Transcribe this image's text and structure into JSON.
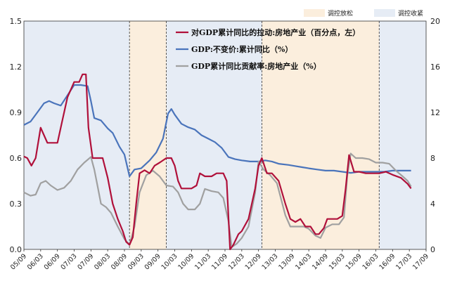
{
  "chart_data": {
    "type": "line",
    "title": "",
    "xlabel": "",
    "ylabel_left": "",
    "ylabel_right": "",
    "ylim_left": [
      0.0,
      1.5
    ],
    "ylim_right": [
      0,
      20
    ],
    "left_ticks": [
      "0.0",
      "0.3",
      "0.6",
      "0.9",
      "1.2",
      "1.5"
    ],
    "right_ticks": [
      "0",
      "4",
      "8",
      "12",
      "16",
      "20"
    ],
    "x_tick_labels": [
      "05/09",
      "06/03",
      "06/09",
      "07/03",
      "07/09",
      "08/03",
      "08/09",
      "09/03",
      "09/09",
      "10/03",
      "10/09",
      "11/03",
      "11/09",
      "12/03",
      "12/09",
      "13/03",
      "13/09",
      "14/03",
      "14/09",
      "15/03",
      "15/09",
      "16/03",
      "16/09",
      "17/03",
      "17/09"
    ],
    "period_legend": [
      {
        "label": "调控放松",
        "color": "#fbeedd"
      },
      {
        "label": "调控收紧",
        "color": "#e6ecf5"
      }
    ],
    "periods": [
      {
        "start": 0.0,
        "end": 6.3,
        "type": "tighten"
      },
      {
        "start": 6.3,
        "end": 8.5,
        "type": "loosen"
      },
      {
        "start": 8.5,
        "end": 14.2,
        "type": "tighten"
      },
      {
        "start": 14.2,
        "end": 21.2,
        "type": "loosen"
      },
      {
        "start": 21.2,
        "end": 24.0,
        "type": "tighten"
      }
    ],
    "series": [
      {
        "name": "对GDP累计同比的拉动:房地产业（百分点，左）",
        "axis": "left",
        "color": "#b0103a",
        "points": [
          [
            0,
            0.61
          ],
          [
            0.2,
            0.6
          ],
          [
            0.45,
            0.55
          ],
          [
            0.7,
            0.6
          ],
          [
            1.0,
            0.8
          ],
          [
            1.2,
            0.75
          ],
          [
            1.4,
            0.7
          ],
          [
            1.7,
            0.7
          ],
          [
            2.0,
            0.7
          ],
          [
            2.3,
            0.85
          ],
          [
            2.6,
            1.0
          ],
          [
            3.0,
            1.1
          ],
          [
            3.3,
            1.1
          ],
          [
            3.5,
            1.15
          ],
          [
            3.7,
            1.15
          ],
          [
            3.85,
            0.8
          ],
          [
            4.1,
            0.6
          ],
          [
            4.4,
            0.6
          ],
          [
            4.7,
            0.6
          ],
          [
            5.0,
            0.47
          ],
          [
            5.3,
            0.3
          ],
          [
            5.6,
            0.2
          ],
          [
            5.9,
            0.12
          ],
          [
            6.1,
            0.05
          ],
          [
            6.3,
            0.03
          ],
          [
            6.5,
            0.08
          ],
          [
            6.7,
            0.3
          ],
          [
            6.9,
            0.5
          ],
          [
            7.2,
            0.52
          ],
          [
            7.5,
            0.5
          ],
          [
            7.8,
            0.55
          ],
          [
            8.1,
            0.57
          ],
          [
            8.5,
            0.6
          ],
          [
            8.8,
            0.6
          ],
          [
            9.0,
            0.55
          ],
          [
            9.2,
            0.45
          ],
          [
            9.4,
            0.4
          ],
          [
            9.7,
            0.4
          ],
          [
            10.0,
            0.4
          ],
          [
            10.3,
            0.42
          ],
          [
            10.5,
            0.5
          ],
          [
            10.8,
            0.48
          ],
          [
            11.2,
            0.48
          ],
          [
            11.5,
            0.5
          ],
          [
            11.9,
            0.5
          ],
          [
            12.1,
            0.45
          ],
          [
            12.3,
            0.0
          ],
          [
            12.5,
            0.03
          ],
          [
            12.8,
            0.1
          ],
          [
            13.0,
            0.12
          ],
          [
            13.4,
            0.2
          ],
          [
            13.8,
            0.4
          ],
          [
            14.0,
            0.55
          ],
          [
            14.2,
            0.6
          ],
          [
            14.5,
            0.5
          ],
          [
            14.8,
            0.5
          ],
          [
            15.2,
            0.45
          ],
          [
            15.6,
            0.3
          ],
          [
            15.9,
            0.2
          ],
          [
            16.2,
            0.18
          ],
          [
            16.5,
            0.2
          ],
          [
            16.8,
            0.15
          ],
          [
            17.1,
            0.15
          ],
          [
            17.4,
            0.1
          ],
          [
            17.6,
            0.1
          ],
          [
            17.9,
            0.14
          ],
          [
            18.1,
            0.2
          ],
          [
            18.4,
            0.2
          ],
          [
            18.7,
            0.2
          ],
          [
            19.0,
            0.22
          ],
          [
            19.2,
            0.4
          ],
          [
            19.4,
            0.62
          ],
          [
            19.7,
            0.51
          ],
          [
            20.0,
            0.51
          ],
          [
            20.4,
            0.5
          ],
          [
            20.8,
            0.5
          ],
          [
            21.2,
            0.5
          ],
          [
            21.6,
            0.51
          ],
          [
            22.0,
            0.49
          ],
          [
            22.5,
            0.47
          ],
          [
            22.9,
            0.43
          ],
          [
            23.1,
            0.4
          ]
        ]
      },
      {
        "name": "GDP:不变价:累计同比（%）",
        "axis": "right",
        "color": "#4a74bb",
        "points": [
          [
            0,
            10.9
          ],
          [
            0.4,
            11.2
          ],
          [
            0.8,
            12.0
          ],
          [
            1.2,
            12.8
          ],
          [
            1.5,
            13.0
          ],
          [
            1.8,
            12.8
          ],
          [
            2.2,
            12.6
          ],
          [
            2.6,
            13.5
          ],
          [
            3.0,
            14.4
          ],
          [
            3.4,
            14.4
          ],
          [
            3.8,
            14.3
          ],
          [
            4.0,
            13.0
          ],
          [
            4.2,
            11.5
          ],
          [
            4.6,
            11.3
          ],
          [
            5.0,
            10.6
          ],
          [
            5.3,
            10.2
          ],
          [
            5.7,
            9.0
          ],
          [
            6.0,
            8.3
          ],
          [
            6.3,
            6.4
          ],
          [
            6.6,
            7.0
          ],
          [
            7.0,
            7.1
          ],
          [
            7.5,
            7.8
          ],
          [
            7.9,
            8.5
          ],
          [
            8.3,
            9.7
          ],
          [
            8.6,
            11.9
          ],
          [
            8.8,
            12.3
          ],
          [
            9.0,
            11.8
          ],
          [
            9.4,
            11.0
          ],
          [
            9.8,
            10.7
          ],
          [
            10.2,
            10.5
          ],
          [
            10.6,
            10.0
          ],
          [
            11.0,
            9.7
          ],
          [
            11.4,
            9.4
          ],
          [
            11.8,
            8.9
          ],
          [
            12.0,
            8.5
          ],
          [
            12.2,
            8.1
          ],
          [
            12.6,
            7.9
          ],
          [
            13.0,
            7.8
          ],
          [
            13.5,
            7.7
          ],
          [
            14.0,
            7.7
          ],
          [
            14.4,
            7.8
          ],
          [
            14.8,
            7.7
          ],
          [
            15.2,
            7.5
          ],
          [
            15.8,
            7.4
          ],
          [
            16.2,
            7.3
          ],
          [
            16.6,
            7.2
          ],
          [
            17.0,
            7.1
          ],
          [
            17.5,
            7.0
          ],
          [
            18.0,
            6.9
          ],
          [
            18.5,
            6.9
          ],
          [
            19.0,
            6.8
          ],
          [
            19.5,
            6.7
          ],
          [
            20.0,
            6.8
          ],
          [
            20.5,
            6.8
          ],
          [
            21.0,
            6.8
          ],
          [
            21.5,
            6.8
          ],
          [
            22.0,
            6.9
          ],
          [
            22.5,
            6.9
          ],
          [
            23.1,
            6.9
          ]
        ]
      },
      {
        "name": "GDP累计同比贡献率:房地产业（%）",
        "axis": "right",
        "color": "#a0a0a0",
        "points": [
          [
            0,
            5.0
          ],
          [
            0.4,
            4.7
          ],
          [
            0.7,
            4.8
          ],
          [
            1.0,
            5.8
          ],
          [
            1.3,
            6.0
          ],
          [
            1.6,
            5.6
          ],
          [
            2.0,
            5.2
          ],
          [
            2.4,
            5.4
          ],
          [
            2.8,
            6.0
          ],
          [
            3.2,
            7.0
          ],
          [
            3.6,
            7.6
          ],
          [
            4.0,
            8.1
          ],
          [
            4.2,
            7.0
          ],
          [
            4.4,
            5.5
          ],
          [
            4.6,
            4.0
          ],
          [
            4.9,
            3.7
          ],
          [
            5.2,
            3.2
          ],
          [
            5.6,
            2.0
          ],
          [
            6.0,
            0.9
          ],
          [
            6.3,
            0.4
          ],
          [
            6.6,
            2.0
          ],
          [
            6.9,
            5.0
          ],
          [
            7.3,
            6.5
          ],
          [
            7.7,
            6.9
          ],
          [
            8.1,
            6.4
          ],
          [
            8.5,
            5.6
          ],
          [
            8.9,
            5.5
          ],
          [
            9.2,
            5.0
          ],
          [
            9.5,
            4.0
          ],
          [
            9.8,
            3.5
          ],
          [
            10.2,
            3.5
          ],
          [
            10.5,
            4.0
          ],
          [
            10.8,
            5.3
          ],
          [
            11.2,
            5.1
          ],
          [
            11.6,
            5.0
          ],
          [
            11.9,
            4.5
          ],
          [
            12.2,
            2.5
          ],
          [
            12.4,
            0.2
          ],
          [
            12.7,
            0.5
          ],
          [
            13.0,
            1.0
          ],
          [
            13.4,
            2.0
          ],
          [
            13.8,
            5.0
          ],
          [
            14.0,
            7.7
          ],
          [
            14.3,
            7.0
          ],
          [
            14.7,
            6.5
          ],
          [
            15.1,
            5.8
          ],
          [
            15.6,
            3.0
          ],
          [
            15.9,
            2.0
          ],
          [
            16.3,
            2.0
          ],
          [
            16.7,
            2.0
          ],
          [
            17.0,
            1.8
          ],
          [
            17.4,
            1.2
          ],
          [
            17.7,
            1.0
          ],
          [
            18.0,
            1.9
          ],
          [
            18.4,
            2.2
          ],
          [
            18.8,
            2.2
          ],
          [
            19.1,
            2.8
          ],
          [
            19.3,
            6.5
          ],
          [
            19.5,
            8.4
          ],
          [
            19.8,
            8.0
          ],
          [
            20.2,
            8.0
          ],
          [
            20.6,
            7.9
          ],
          [
            21.0,
            7.6
          ],
          [
            21.4,
            7.6
          ],
          [
            21.8,
            7.5
          ],
          [
            22.2,
            6.9
          ],
          [
            22.6,
            6.4
          ],
          [
            22.9,
            6.0
          ],
          [
            23.1,
            5.5
          ]
        ]
      }
    ],
    "legend_placement": "top-center",
    "grid": false
  }
}
